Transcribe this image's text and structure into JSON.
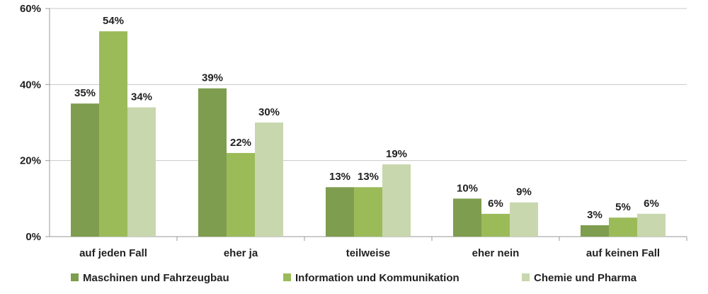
{
  "chart_data": {
    "type": "bar",
    "categories": [
      "auf jeden Fall",
      "eher ja",
      "teilweise",
      "eher nein",
      "auf keinen Fall"
    ],
    "series": [
      {
        "name": "Maschinen und Fahrzeugbau",
        "values": [
          35,
          39,
          13,
          10,
          3
        ],
        "labels": [
          "35%",
          "39%",
          "13%",
          "10%",
          "3%"
        ],
        "color": "#7f9d4f"
      },
      {
        "name": "Information und Kommunikation",
        "values": [
          54,
          22,
          13,
          6,
          5
        ],
        "labels": [
          "54%",
          "22%",
          "13%",
          "6%",
          "5%"
        ],
        "color": "#9bbb59"
      },
      {
        "name": "Chemie und Pharma",
        "values": [
          34,
          30,
          19,
          9,
          6
        ],
        "labels": [
          "34%",
          "30%",
          "19%",
          "9%",
          "6%"
        ],
        "color": "#c8d7ad"
      }
    ],
    "ylim": [
      0,
      60
    ],
    "yticks": [
      0,
      20,
      40,
      60
    ],
    "ytick_labels": [
      "0%",
      "20%",
      "40%",
      "60%"
    ],
    "grid": true,
    "legend": "bottom"
  }
}
